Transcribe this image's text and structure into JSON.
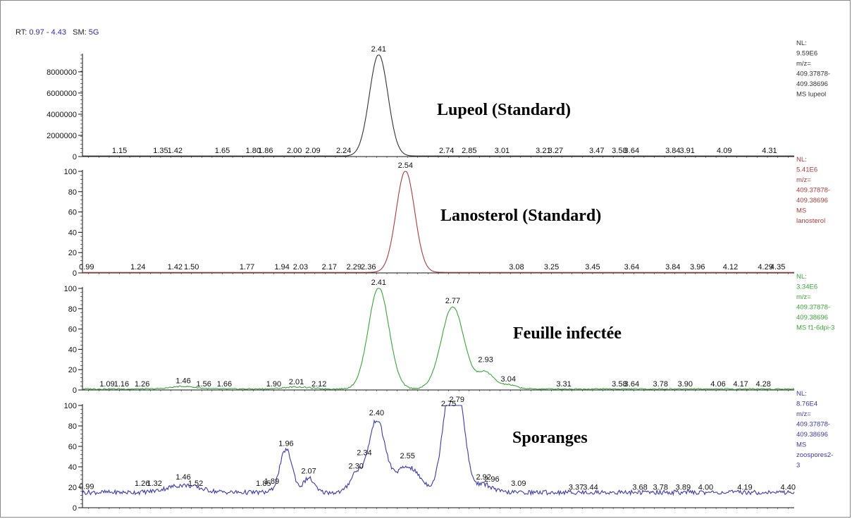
{
  "header": {
    "rt_label": "RT:",
    "rt_range": "0.97 - 4.43",
    "sm_label": "SM:",
    "sm_value": "5G"
  },
  "chart_data": [
    {
      "type": "line",
      "title": "Lupeol (Standard)",
      "color": "#333333",
      "axis": "abs",
      "xlim": [
        0.97,
        4.43
      ],
      "ylim": [
        0,
        9590000
      ],
      "yticks": [
        "0",
        "2000000",
        "4000000",
        "6000000",
        "8000000"
      ],
      "yticks_values": [
        0,
        2000000,
        4000000,
        6000000,
        8000000
      ],
      "side_text": [
        "NL:",
        "9.59E6",
        "m/z=",
        "409.37878-",
        "409.38696",
        "MS lupeol"
      ],
      "peaks": [
        {
          "rt": 2.41,
          "height": 9590000,
          "width": 0.045
        }
      ],
      "baseline": 50000,
      "noise": 0,
      "labels": [
        {
          "rt": 1.15,
          "y": 0
        },
        {
          "rt": 1.35,
          "y": 0
        },
        {
          "rt": 1.42,
          "y": 0
        },
        {
          "rt": 1.65,
          "y": 0
        },
        {
          "rt": 1.8,
          "y": 0
        },
        {
          "rt": 1.86,
          "y": 0
        },
        {
          "rt": 2.0,
          "y": 0
        },
        {
          "rt": 2.09,
          "y": 0
        },
        {
          "rt": 2.24,
          "y": 0
        },
        {
          "rt": 2.41,
          "y": 9590000
        },
        {
          "rt": 2.74,
          "y": 0
        },
        {
          "rt": 2.85,
          "y": 0
        },
        {
          "rt": 3.01,
          "y": 0
        },
        {
          "rt": 3.21,
          "y": 0
        },
        {
          "rt": 3.27,
          "y": 0
        },
        {
          "rt": 3.47,
          "y": 0
        },
        {
          "rt": 3.58,
          "y": 0
        },
        {
          "rt": 3.64,
          "y": 0
        },
        {
          "rt": 3.84,
          "y": 0
        },
        {
          "rt": 3.91,
          "y": 0
        },
        {
          "rt": 4.09,
          "y": 0
        },
        {
          "rt": 4.31,
          "y": 0
        }
      ],
      "label_text": [
        "1.15",
        "1.35",
        "1.42",
        "1.65",
        "1.80",
        "1.86",
        "2.00",
        "2.09",
        "2.24",
        "2.41",
        "2.74",
        "2.85",
        "3.01",
        "3.21",
        "3.27",
        "3.47",
        "3.58",
        "3.64",
        "3.84",
        "3.91",
        "4.09",
        "4.31"
      ]
    },
    {
      "type": "line",
      "title": "Lanosterol (Standard)",
      "color": "#b03a3a",
      "axis": "rel",
      "xlim": [
        0.97,
        4.43
      ],
      "ylim": [
        0,
        100
      ],
      "yticks": [
        "0",
        "20",
        "40",
        "60",
        "80",
        "100"
      ],
      "yticks_values": [
        0,
        20,
        40,
        60,
        80,
        100
      ],
      "side_text": [
        "NL:",
        "5.41E6",
        "m/z=",
        "409.37878-",
        "409.38696",
        "MS",
        "lanosterol"
      ],
      "peaks": [
        {
          "rt": 2.54,
          "height": 100,
          "width": 0.045
        }
      ],
      "baseline": 0.5,
      "noise": 0,
      "labels": [
        {
          "rt": 0.99,
          "y": 0
        },
        {
          "rt": 1.24,
          "y": 0
        },
        {
          "rt": 1.42,
          "y": 0
        },
        {
          "rt": 1.5,
          "y": 0
        },
        {
          "rt": 1.77,
          "y": 0
        },
        {
          "rt": 1.94,
          "y": 0
        },
        {
          "rt": 2.03,
          "y": 0
        },
        {
          "rt": 2.17,
          "y": 0
        },
        {
          "rt": 2.29,
          "y": 0
        },
        {
          "rt": 2.36,
          "y": 0
        },
        {
          "rt": 2.54,
          "y": 100
        },
        {
          "rt": 3.08,
          "y": 0
        },
        {
          "rt": 3.25,
          "y": 0
        },
        {
          "rt": 3.45,
          "y": 0
        },
        {
          "rt": 3.64,
          "y": 0
        },
        {
          "rt": 3.84,
          "y": 0
        },
        {
          "rt": 3.96,
          "y": 0
        },
        {
          "rt": 4.12,
          "y": 0
        },
        {
          "rt": 4.29,
          "y": 0
        },
        {
          "rt": 4.35,
          "y": 0
        }
      ],
      "label_text": [
        "0.99",
        "1.24",
        "1.42",
        "1.50",
        "1.77",
        "1.94",
        "2.03",
        "2.17",
        "2.29",
        "2.36",
        "2.54",
        "3.08",
        "3.25",
        "3.45",
        "3.64",
        "3.84",
        "3.96",
        "4.12",
        "4.29",
        "4.35"
      ]
    },
    {
      "type": "line",
      "title": "Feuille infectée",
      "color": "#3aa63a",
      "axis": "rel",
      "xlim": [
        0.97,
        4.43
      ],
      "ylim": [
        0,
        100
      ],
      "yticks": [
        "0",
        "20",
        "40",
        "60",
        "80",
        "100"
      ],
      "yticks_values": [
        0,
        20,
        40,
        60,
        80,
        100
      ],
      "side_text": [
        "NL:",
        "3.34E6",
        "m/z=",
        "409.37878-",
        "409.38696",
        "MS f1-6dpi-3"
      ],
      "peaks": [
        {
          "rt": 2.41,
          "height": 100,
          "width": 0.05
        },
        {
          "rt": 2.77,
          "height": 81,
          "width": 0.055
        },
        {
          "rt": 2.93,
          "height": 16,
          "width": 0.04
        },
        {
          "rt": 3.04,
          "height": 4,
          "width": 0.04
        },
        {
          "rt": 1.46,
          "height": 2.5,
          "width": 0.06
        },
        {
          "rt": 2.01,
          "height": 2,
          "width": 0.06
        }
      ],
      "baseline": 1,
      "noise": 0.6,
      "labels": [
        {
          "rt": 1.09,
          "y": 0
        },
        {
          "rt": 1.16,
          "y": 0
        },
        {
          "rt": 1.26,
          "y": 0
        },
        {
          "rt": 1.46,
          "y": 3
        },
        {
          "rt": 1.56,
          "y": 0
        },
        {
          "rt": 1.66,
          "y": 0
        },
        {
          "rt": 1.9,
          "y": 0
        },
        {
          "rt": 2.01,
          "y": 2
        },
        {
          "rt": 2.12,
          "y": 0
        },
        {
          "rt": 2.41,
          "y": 100
        },
        {
          "rt": 2.77,
          "y": 82
        },
        {
          "rt": 2.93,
          "y": 24
        },
        {
          "rt": 3.04,
          "y": 5
        },
        {
          "rt": 3.31,
          "y": 0
        },
        {
          "rt": 3.58,
          "y": 0
        },
        {
          "rt": 3.64,
          "y": 0
        },
        {
          "rt": 3.78,
          "y": 0
        },
        {
          "rt": 3.9,
          "y": 0
        },
        {
          "rt": 4.06,
          "y": 0
        },
        {
          "rt": 4.17,
          "y": 0
        },
        {
          "rt": 4.28,
          "y": 0
        }
      ],
      "label_text": [
        "1.09",
        "1.16",
        "1.26",
        "1.46",
        "1.56",
        "1.66",
        "1.90",
        "2.01",
        "2.12",
        "2.41",
        "2.77",
        "2.93",
        "3.04",
        "3.31",
        "3.58",
        "3.64",
        "3.78",
        "3.90",
        "4.06",
        "4.17",
        "4.28"
      ]
    },
    {
      "type": "line",
      "title": "Sporanges",
      "color": "#3a3ab0",
      "axis": "rel",
      "xlim": [
        0.97,
        4.43
      ],
      "ylim": [
        0,
        100
      ],
      "yticks": [
        "0",
        "20",
        "40",
        "60",
        "80",
        "100"
      ],
      "yticks_values": [
        0,
        20,
        40,
        60,
        80,
        100
      ],
      "side_text": [
        "NL:",
        "8.76E4",
        "m/z=",
        "409.37878-",
        "409.38696",
        "MS",
        "zoospores2-",
        "3"
      ],
      "peaks": [
        {
          "rt": 1.96,
          "height": 42,
          "width": 0.03
        },
        {
          "rt": 2.07,
          "height": 14,
          "width": 0.025
        },
        {
          "rt": 2.3,
          "height": 18,
          "width": 0.03
        },
        {
          "rt": 2.4,
          "height": 70,
          "width": 0.04
        },
        {
          "rt": 2.55,
          "height": 25,
          "width": 0.06
        },
        {
          "rt": 2.75,
          "height": 80,
          "width": 0.035
        },
        {
          "rt": 2.8,
          "height": 75,
          "width": 0.035
        },
        {
          "rt": 2.92,
          "height": 8,
          "width": 0.04
        },
        {
          "rt": 1.46,
          "height": 7,
          "width": 0.08
        }
      ],
      "baseline": 15,
      "noise": 2.2,
      "labels": [
        {
          "rt": 0.99,
          "y": 15
        },
        {
          "rt": 1.26,
          "y": 18
        },
        {
          "rt": 1.32,
          "y": 18
        },
        {
          "rt": 1.46,
          "y": 24
        },
        {
          "rt": 1.52,
          "y": 18
        },
        {
          "rt": 1.85,
          "y": 18
        },
        {
          "rt": 1.89,
          "y": 20
        },
        {
          "rt": 1.96,
          "y": 57
        },
        {
          "rt": 2.07,
          "y": 30
        },
        {
          "rt": 2.3,
          "y": 35
        },
        {
          "rt": 2.34,
          "y": 48
        },
        {
          "rt": 2.4,
          "y": 87
        },
        {
          "rt": 2.55,
          "y": 45
        },
        {
          "rt": 2.75,
          "y": 96
        },
        {
          "rt": 2.79,
          "y": 100
        },
        {
          "rt": 2.92,
          "y": 24
        },
        {
          "rt": 2.96,
          "y": 22
        },
        {
          "rt": 3.09,
          "y": 18
        },
        {
          "rt": 3.37,
          "y": 14
        },
        {
          "rt": 3.44,
          "y": 14
        },
        {
          "rt": 3.68,
          "y": 14
        },
        {
          "rt": 3.78,
          "y": 14
        },
        {
          "rt": 3.89,
          "y": 14
        },
        {
          "rt": 4.0,
          "y": 14
        },
        {
          "rt": 4.19,
          "y": 14
        },
        {
          "rt": 4.4,
          "y": 14
        }
      ],
      "label_text": [
        "0.99",
        "1.26",
        "1.32",
        "1.46",
        "1.52",
        "1.85",
        "1.89",
        "1.96",
        "2.07",
        "2.30",
        "2.34",
        "2.40",
        "2.55",
        "2.75",
        "2.79",
        "2.92",
        "2.96",
        "3.09",
        "3.37",
        "3.44",
        "3.68",
        "3.78",
        "3.89",
        "4.00",
        "4.19",
        "4.40"
      ]
    }
  ]
}
